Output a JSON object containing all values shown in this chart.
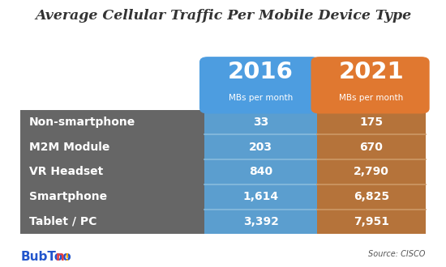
{
  "title": "Average Cellular Traffic Per Mobile Device Type",
  "col1_year": "2016",
  "col2_year": "2021",
  "col_subtitle": "MBs per month",
  "source": "Source: CISCO",
  "rows": [
    {
      "label": "Non-smartphone",
      "val2016": "33",
      "val2021": "175"
    },
    {
      "label": "M2M Module",
      "val2016": "203",
      "val2021": "670"
    },
    {
      "label": "VR Headset",
      "val2016": "840",
      "val2021": "2,790"
    },
    {
      "label": "Smartphone",
      "val2016": "1,614",
      "val2021": "6,825"
    },
    {
      "label": "Tablet / PC",
      "val2016": "3,392",
      "val2021": "7,951"
    }
  ],
  "color_blue_header": "#4d9de0",
  "color_orange_header": "#e07830",
  "color_blue_cell": "#5b9ecf",
  "color_orange_cell": "#b5733a",
  "color_row_dark": "#666666",
  "color_bg": "#ffffff",
  "title_color": "#333333",
  "row_sep_blue": "#88bbdd",
  "row_sep_orange": "#cc9966"
}
